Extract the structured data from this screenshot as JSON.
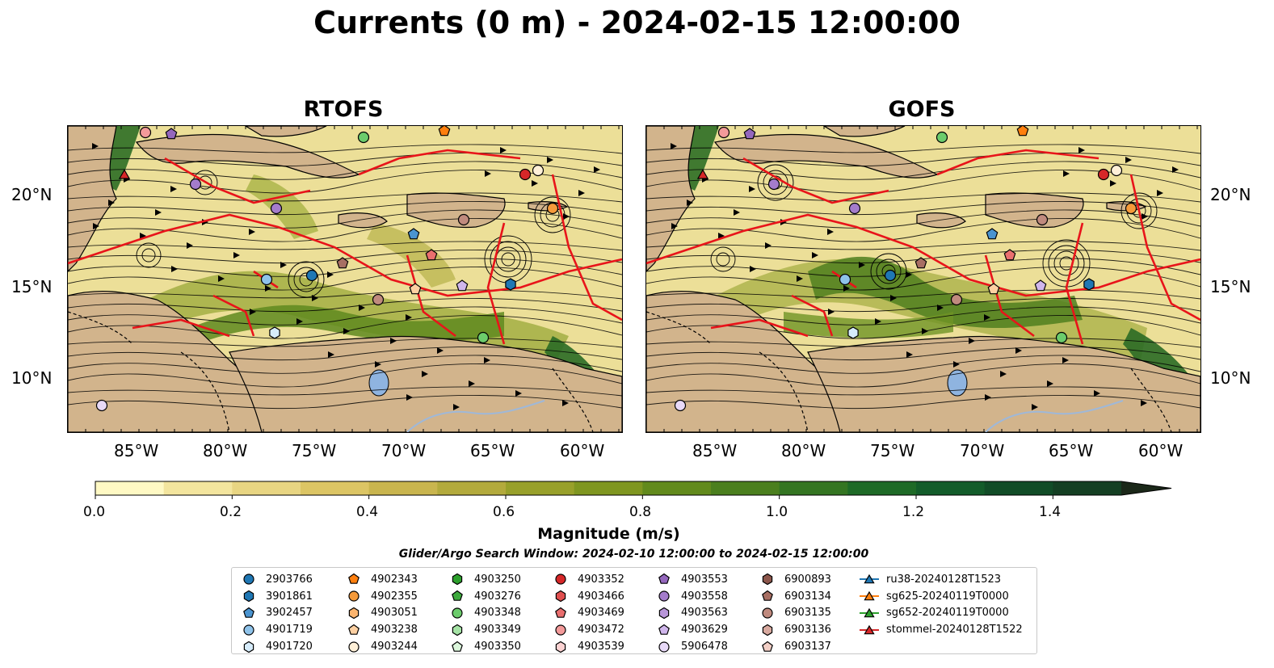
{
  "title": "Currents (0 m) - 2024-02-15 12:00:00",
  "panels": [
    {
      "title": "RTOFS"
    },
    {
      "title": "GOFS"
    }
  ],
  "axes": {
    "lat_labels": [
      "20°N",
      "15°N",
      "10°N"
    ],
    "lon_labels": [
      "85°W",
      "80°W",
      "75°W",
      "70°W",
      "65°W",
      "60°W"
    ]
  },
  "colorbar": {
    "label": "Magnitude (m/s)",
    "tick_labels": [
      "0.0",
      "0.2",
      "0.4",
      "0.6",
      "0.8",
      "1.0",
      "1.2",
      "1.4"
    ],
    "min": 0.0,
    "max": 1.5,
    "extend": "max",
    "colors": [
      "#fff9c4",
      "#f3e59e",
      "#e8d582",
      "#dcc564",
      "#c9b54e",
      "#b3aa3c",
      "#98a02a",
      "#7f9620",
      "#628a1c",
      "#4b7f1e",
      "#347522",
      "#1e6a27",
      "#135c2a",
      "#114c27",
      "#143f23",
      "#17331e",
      "#1b2819"
    ]
  },
  "search_window": "Glider/Argo Search Window: 2024-02-10 12:00:00 to 2024-02-15 12:00:00",
  "legend": [
    [
      {
        "label": "2903766",
        "marker": "circle",
        "color": "#1f77b4"
      },
      {
        "label": "3901861",
        "marker": "hexagon",
        "color": "#1f77b4"
      },
      {
        "label": "3902457",
        "marker": "pentagon",
        "color": "#4a94d0"
      },
      {
        "label": "4901719",
        "marker": "circle",
        "color": "#8fc3ea"
      },
      {
        "label": "4901720",
        "marker": "hexagon",
        "color": "#d6ecfb"
      }
    ],
    [
      {
        "label": "4902343",
        "marker": "pentagon",
        "color": "#ff7f0e"
      },
      {
        "label": "4902355",
        "marker": "circle",
        "color": "#f59a3a"
      },
      {
        "label": "4903051",
        "marker": "hexagon",
        "color": "#fbb46e"
      },
      {
        "label": "4903238",
        "marker": "pentagon",
        "color": "#fdd0a2"
      },
      {
        "label": "4903244",
        "marker": "circle",
        "color": "#fff0d8"
      }
    ],
    [
      {
        "label": "4903250",
        "marker": "hexagon",
        "color": "#2ca02c"
      },
      {
        "label": "4903276",
        "marker": "pentagon",
        "color": "#3daa3d"
      },
      {
        "label": "4903348",
        "marker": "circle",
        "color": "#6ccc6c"
      },
      {
        "label": "4903349",
        "marker": "hexagon",
        "color": "#a5e3a5"
      },
      {
        "label": "4903350",
        "marker": "pentagon",
        "color": "#dcf7dc"
      }
    ],
    [
      {
        "label": "4903352",
        "marker": "circle",
        "color": "#d62728"
      },
      {
        "label": "4903466",
        "marker": "hexagon",
        "color": "#e04f4f"
      },
      {
        "label": "4903469",
        "marker": "pentagon",
        "color": "#ea6f6f"
      },
      {
        "label": "4903472",
        "marker": "circle",
        "color": "#f39a9a"
      },
      {
        "label": "4903539",
        "marker": "hexagon",
        "color": "#fcd2d2"
      }
    ],
    [
      {
        "label": "4903553",
        "marker": "pentagon",
        "color": "#9467bd"
      },
      {
        "label": "4903558",
        "marker": "circle",
        "color": "#a47ccb"
      },
      {
        "label": "4903563",
        "marker": "hexagon",
        "color": "#b896d9"
      },
      {
        "label": "4903629",
        "marker": "pentagon",
        "color": "#d0b6ec"
      },
      {
        "label": "5906478",
        "marker": "circle",
        "color": "#e8d9f8"
      }
    ],
    [
      {
        "label": "6900893",
        "marker": "hexagon",
        "color": "#8c564b"
      },
      {
        "label": "6903134",
        "marker": "pentagon",
        "color": "#a86f63"
      },
      {
        "label": "6903135",
        "marker": "circle",
        "color": "#c08a7e"
      },
      {
        "label": "6903136",
        "marker": "hexagon",
        "color": "#d8a99f"
      },
      {
        "label": "6903137",
        "marker": "pentagon",
        "color": "#f2cfc6"
      }
    ],
    [
      {
        "label": "ru38-20240128T1523",
        "marker": "triangle",
        "color": "#1f77b4"
      },
      {
        "label": "sg625-20240119T0000",
        "marker": "triangle",
        "color": "#ff7f0e"
      },
      {
        "label": "sg652-20240119T0000",
        "marker": "triangle",
        "color": "#2ca02c"
      },
      {
        "label": "stommel-20240128T1522",
        "marker": "triangle",
        "color": "#d62728"
      }
    ]
  ]
}
